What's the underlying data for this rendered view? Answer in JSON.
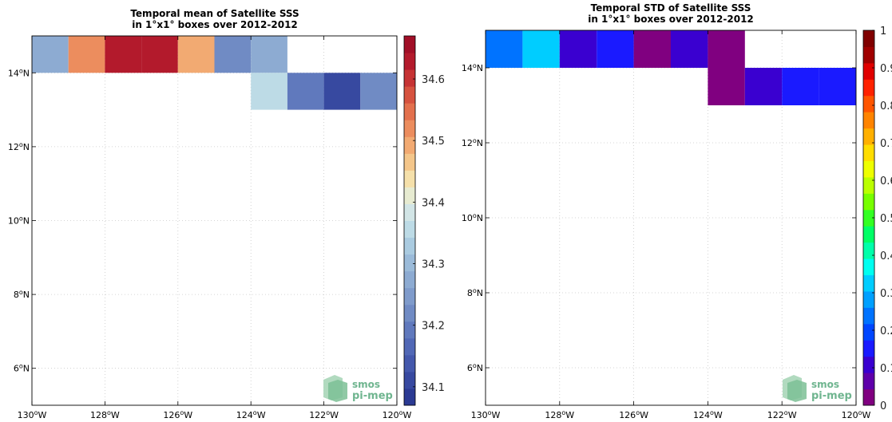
{
  "chart_data": [
    {
      "type": "heatmap",
      "title": [
        "Temporal mean of Satellite SSS",
        "in 1°x1° boxes over 2012-2012"
      ],
      "xlim": [
        -130,
        -120
      ],
      "ylim": [
        5,
        15
      ],
      "x_ticks": [
        -130,
        -128,
        -126,
        -124,
        -122,
        -120
      ],
      "x_tick_labels": [
        "130°W",
        "128°W",
        "126°W",
        "124°W",
        "122°W",
        "120°W"
      ],
      "y_ticks": [
        6,
        8,
        10,
        12,
        14
      ],
      "y_tick_labels": [
        "6°N",
        "8°N",
        "10°N",
        "12°N",
        "14°N"
      ],
      "grid": true,
      "cells": [
        {
          "lon": -130,
          "lat": 14,
          "value": 34.27
        },
        {
          "lon": -129,
          "lat": 14,
          "value": 34.51
        },
        {
          "lon": -128,
          "lat": 14,
          "value": 34.64
        },
        {
          "lon": -127,
          "lat": 14,
          "value": 34.64
        },
        {
          "lon": -126,
          "lat": 14,
          "value": 34.49
        },
        {
          "lon": -125,
          "lat": 14,
          "value": 34.22
        },
        {
          "lon": -124,
          "lat": 14,
          "value": 34.27
        },
        {
          "lon": -124,
          "lat": 13,
          "value": 34.36
        },
        {
          "lon": -123,
          "lat": 13,
          "value": 34.19
        },
        {
          "lon": -122,
          "lat": 13,
          "value": 34.12
        },
        {
          "lon": -121,
          "lat": 13,
          "value": 34.22
        }
      ],
      "colorbar": {
        "range": [
          34.07,
          34.67
        ],
        "ticks": [
          34.1,
          34.2,
          34.3,
          34.4,
          34.5,
          34.6
        ],
        "tick_labels": [
          "34.1",
          "34.2",
          "34.3",
          "34.4",
          "34.5",
          "34.6"
        ],
        "colors": [
          "#2b3a93",
          "#3749a0",
          "#4458ac",
          "#5168b6",
          "#6079bd",
          "#708bc4",
          "#7f9bcb",
          "#8dabd2",
          "#9bbbd9",
          "#aacbe0",
          "#bddbe6",
          "#d2e5e6",
          "#e7ebd1",
          "#f5e0aa",
          "#f4c68a",
          "#f2aa72",
          "#ec8d5e",
          "#e3704d",
          "#d6523f",
          "#c63334",
          "#b31a2c",
          "#a10f27"
        ]
      }
    },
    {
      "type": "heatmap",
      "title": [
        "Temporal STD of Satellite SSS",
        "in 1°x1° boxes over 2012-2012"
      ],
      "xlim": [
        -130,
        -120
      ],
      "ylim": [
        5,
        15
      ],
      "x_ticks": [
        -130,
        -128,
        -126,
        -124,
        -122,
        -120
      ],
      "x_tick_labels": [
        "130°W",
        "128°W",
        "126°W",
        "124°W",
        "122°W",
        "120°W"
      ],
      "y_ticks": [
        6,
        8,
        10,
        12,
        14
      ],
      "y_tick_labels": [
        "6°N",
        "8°N",
        "10°N",
        "12°N",
        "14°N"
      ],
      "grid": true,
      "cells": [
        {
          "lon": -130,
          "lat": 14,
          "value": 0.23
        },
        {
          "lon": -129,
          "lat": 14,
          "value": 0.33
        },
        {
          "lon": -128,
          "lat": 14,
          "value": 0.1
        },
        {
          "lon": -127,
          "lat": 14,
          "value": 0.17
        },
        {
          "lon": -126,
          "lat": 14,
          "value": 0.03
        },
        {
          "lon": -125,
          "lat": 14,
          "value": 0.1
        },
        {
          "lon": -124,
          "lat": 14,
          "value": 0.03
        },
        {
          "lon": -124,
          "lat": 13,
          "value": 0.03
        },
        {
          "lon": -123,
          "lat": 13,
          "value": 0.1
        },
        {
          "lon": -122,
          "lat": 13,
          "value": 0.17
        },
        {
          "lon": -121,
          "lat": 13,
          "value": 0.17
        }
      ],
      "colorbar": {
        "range": [
          0,
          1
        ],
        "ticks": [
          0,
          0.1,
          0.2,
          0.3,
          0.4,
          0.5,
          0.6,
          0.7,
          0.8,
          0.9,
          1
        ],
        "tick_labels": [
          "0",
          "0.1",
          "0.2",
          "0.3",
          "0.4",
          "0.5",
          "0.6",
          "0.7",
          "0.8",
          "0.9",
          "1"
        ],
        "colors": [
          "#800080",
          "#5f00aa",
          "#3a00d0",
          "#1a1aff",
          "#0046ff",
          "#0073ff",
          "#00a0ff",
          "#00cdff",
          "#00fff0",
          "#00ffaa",
          "#00ff66",
          "#33ff22",
          "#77ff00",
          "#bbff00",
          "#eeff00",
          "#ffdd00",
          "#ffb000",
          "#ff8400",
          "#ff5500",
          "#ff2200",
          "#e00000",
          "#a00000",
          "#800000"
        ]
      }
    }
  ],
  "logo": {
    "line1": "smos",
    "line2": "pi-mep"
  }
}
